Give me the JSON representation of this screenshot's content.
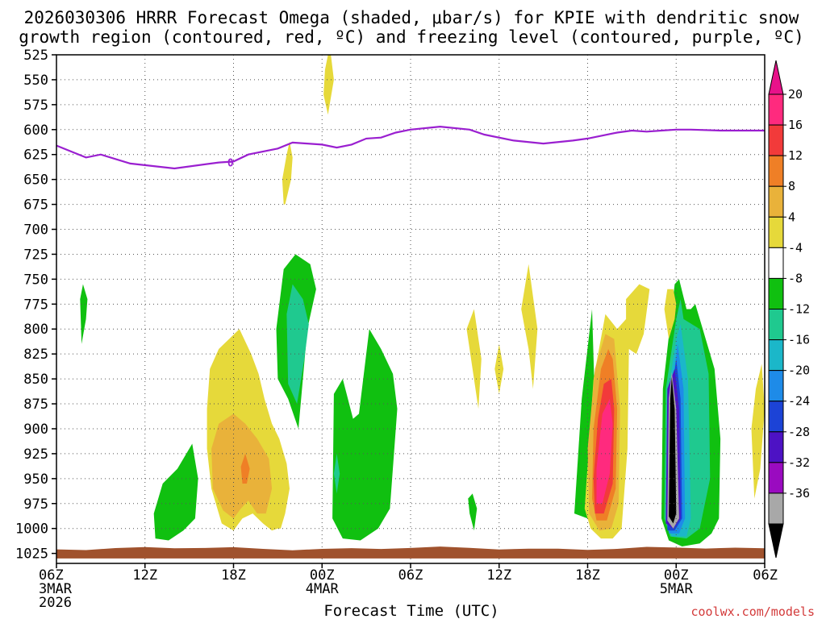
{
  "chart_data": {
    "type": "heatmap",
    "title_line1": "2026030306 HRRR Forecast Omega (shaded, μbar/s) for KPIE with dendritic snow",
    "title_line2": "growth region (contoured, red, ºC) and freezing level (contoured, purple, ºC)",
    "xlabel": "Forecast Time (UTC)",
    "x_unit": "forecast hour",
    "x_range": [
      0,
      48
    ],
    "x_ticks": [
      {
        "hour": 0,
        "label": "06Z",
        "date": "3MAR",
        "year": "2026"
      },
      {
        "hour": 6,
        "label": "12Z"
      },
      {
        "hour": 12,
        "label": "18Z"
      },
      {
        "hour": 18,
        "label": "00Z",
        "date": "4MAR"
      },
      {
        "hour": 24,
        "label": "06Z"
      },
      {
        "hour": 30,
        "label": "12Z"
      },
      {
        "hour": 36,
        "label": "18Z"
      },
      {
        "hour": 42,
        "label": "00Z",
        "date": "5MAR"
      },
      {
        "hour": 48,
        "label": "06Z"
      }
    ],
    "y_unit": "hPa",
    "y_range": [
      525,
      1035
    ],
    "y_ticks": [
      525,
      550,
      575,
      600,
      625,
      650,
      675,
      700,
      725,
      750,
      775,
      800,
      825,
      850,
      875,
      900,
      925,
      950,
      975,
      1000,
      1025
    ],
    "grid": true,
    "colorbar": {
      "levels": [
        "20",
        "16",
        "12",
        "8",
        "4",
        "-4",
        "-8",
        "-12",
        "-16",
        "-20",
        "-24",
        "-28",
        "-32",
        "-36"
      ],
      "colors": [
        "#ff2a7e",
        "#f23a3a",
        "#ef7f26",
        "#e9b23a",
        "#e6d93a",
        "#ffffff",
        "#10c010",
        "#1fc98f",
        "#1bb7c9",
        "#1e8be8",
        "#1c43d6",
        "#4d12c4",
        "#9a0bc0",
        "#a8a8a8",
        "#000000"
      ],
      "top_color": "#e8128a",
      "bottom_color": "#000000"
    },
    "freezing_level": {
      "label": "0",
      "color": "#9a1fd0",
      "hours": [
        0,
        2,
        3,
        5,
        8,
        11,
        12,
        13,
        15,
        16,
        17,
        18,
        19,
        20,
        21,
        22,
        23,
        24,
        26,
        28,
        29,
        31,
        33,
        35,
        36,
        38,
        39,
        40,
        41,
        42,
        43,
        45,
        47,
        48
      ],
      "pressure": [
        616,
        628,
        625,
        634,
        639,
        633,
        632,
        625,
        619,
        613,
        614,
        615,
        618,
        615,
        609,
        608,
        603,
        600,
        597,
        600,
        605,
        611,
        614,
        611,
        609,
        603,
        601,
        602,
        601,
        600,
        600,
        601,
        601,
        601
      ]
    },
    "terrain_color": "#a0522d",
    "regions": [
      {
        "omega": "4",
        "color": "#e6d93a",
        "hours": [
          15.2,
          15.5,
          15.8,
          15.6,
          15.1,
          14.6,
          14.1,
          13.7,
          13.2,
          12.4,
          11.0,
          10.4,
          10.2,
          10.2,
          10.5,
          11.2,
          12.0,
          12.6,
          13.3,
          14.0,
          14.6,
          15.0,
          15.2
        ],
        "pressure": [
          1000,
          985,
          960,
          935,
          910,
          895,
          870,
          845,
          825,
          800,
          820,
          840,
          880,
          920,
          960,
          995,
          1002,
          990,
          985,
          995,
          1002,
          1000,
          1000
        ]
      },
      {
        "omega": "8",
        "color": "#e9b23a",
        "hours": [
          14.2,
          14.6,
          14.4,
          13.6,
          12.8,
          12.0,
          11.0,
          10.5,
          10.6,
          11.3,
          12.0,
          12.5,
          13.0,
          13.6,
          14.2
        ],
        "pressure": [
          985,
          960,
          930,
          910,
          895,
          885,
          895,
          920,
          960,
          982,
          990,
          980,
          972,
          985,
          985
        ]
      },
      {
        "omega": "12",
        "color": "#ef7f26",
        "hours": [
          12.9,
          13.1,
          12.8,
          12.5,
          12.6,
          12.9
        ],
        "pressure": [
          955,
          940,
          925,
          938,
          955,
          955
        ]
      },
      {
        "omega": "4",
        "color": "#e6d93a",
        "hours": [
          15.5,
          15.9,
          16.0,
          15.8,
          15.6,
          15.3,
          15.4,
          15.5
        ],
        "pressure": [
          675,
          650,
          628,
          612,
          625,
          650,
          675,
          675
        ]
      },
      {
        "omega": "4",
        "color": "#e6d93a",
        "hours": [
          18.6,
          18.8,
          18.4,
          18.1,
          18.2,
          18.4,
          18.6
        ],
        "pressure": [
          525,
          550,
          585,
          565,
          540,
          525,
          525
        ]
      },
      {
        "omega": "-4",
        "color": "#10c010",
        "hours": [
          1.8,
          2.1,
          2.0,
          1.7,
          1.6,
          1.8
        ],
        "pressure": [
          755,
          770,
          790,
          815,
          770,
          755
        ]
      },
      {
        "omega": "-4",
        "color": "#10c010",
        "hours": [
          9.4,
          9.6,
          9.2,
          8.2,
          7.2,
          6.6,
          6.7,
          7.6,
          8.6,
          9.4
        ],
        "pressure": [
          990,
          950,
          915,
          940,
          955,
          985,
          1010,
          1012,
          1002,
          990
        ]
      },
      {
        "omega": "-4",
        "color": "#10c010",
        "hours": [
          17.0,
          17.6,
          17.2,
          16.2,
          15.4,
          14.9,
          15.0,
          15.7,
          16.4,
          17.0
        ],
        "pressure": [
          800,
          760,
          735,
          725,
          740,
          800,
          850,
          870,
          900,
          800
        ]
      },
      {
        "omega": "-8",
        "color": "#1fc98f",
        "hours": [
          16.8,
          17.1,
          16.7,
          16.0,
          15.6,
          15.7,
          16.3,
          16.8
        ],
        "pressure": [
          830,
          795,
          770,
          755,
          785,
          855,
          875,
          830
        ]
      },
      {
        "omega": "-4",
        "color": "#10c010",
        "hours": [
          22.6,
          23.1,
          22.8,
          22.0,
          21.2,
          20.5,
          20.1,
          19.4,
          18.8,
          18.7,
          19.4,
          20.6,
          21.8,
          22.6
        ],
        "pressure": [
          980,
          880,
          845,
          820,
          800,
          885,
          890,
          850,
          865,
          990,
          1010,
          1012,
          1000,
          980
        ]
      },
      {
        "omega": "-8",
        "color": "#1fc98f",
        "hours": [
          19.0,
          19.2,
          19.0,
          18.8,
          19.0
        ],
        "pressure": [
          925,
          945,
          965,
          945,
          925
        ]
      },
      {
        "omega": "-4",
        "color": "#10c010",
        "hours": [
          28.2,
          28.5,
          28.3,
          28.0,
          27.9,
          28.2
        ],
        "pressure": [
          965,
          980,
          1002,
          985,
          970,
          965
        ]
      },
      {
        "omega": "4",
        "color": "#e6d93a",
        "hours": [
          28.3,
          28.8,
          28.6,
          28.2,
          27.8,
          28.3
        ],
        "pressure": [
          780,
          830,
          880,
          840,
          800,
          780
        ]
      },
      {
        "omega": "4",
        "color": "#e6d93a",
        "hours": [
          30.0,
          30.3,
          30.0,
          29.7,
          30.0
        ],
        "pressure": [
          815,
          840,
          865,
          840,
          815
        ]
      },
      {
        "omega": "4",
        "color": "#e6d93a",
        "hours": [
          32.0,
          32.6,
          32.3,
          32.0,
          31.5,
          32.0
        ],
        "pressure": [
          735,
          800,
          860,
          820,
          780,
          735
        ]
      },
      {
        "omega": "-4",
        "color": "#10c010",
        "hours": [
          36.3,
          36.6,
          36.0,
          35.1,
          35.6,
          36.3
        ],
        "pressure": [
          780,
          930,
          990,
          985,
          870,
          780
        ]
      },
      {
        "omega": "4",
        "color": "#e6d93a",
        "hours": [
          38.0,
          38.6,
          38.6,
          39.5,
          40.2,
          39.8,
          39.3,
          38.8,
          38.7,
          38.3,
          37.7,
          36.9,
          36.2,
          35.8,
          36.4,
          37.2,
          38.0
        ],
        "pressure": [
          800,
          790,
          770,
          755,
          760,
          805,
          825,
          820,
          920,
          1000,
          1010,
          1010,
          1000,
          980,
          850,
          785,
          800
        ]
      },
      {
        "omega": "8",
        "color": "#e9b23a",
        "hours": [
          37.8,
          38.2,
          38.1,
          37.6,
          36.8,
          36.1,
          36.0,
          36.5,
          37.2,
          37.8
        ],
        "pressure": [
          810,
          880,
          975,
          1000,
          1002,
          985,
          920,
          840,
          805,
          810
        ]
      },
      {
        "omega": "12",
        "color": "#ef7f26",
        "hours": [
          37.7,
          38.0,
          37.9,
          37.3,
          36.6,
          36.3,
          36.4,
          36.9,
          37.4,
          37.7
        ],
        "pressure": [
          830,
          880,
          960,
          992,
          992,
          970,
          900,
          840,
          820,
          830
        ]
      },
      {
        "omega": "16",
        "color": "#f23a3a",
        "hours": [
          37.6,
          37.8,
          37.7,
          37.1,
          36.5,
          36.4,
          36.7,
          37.1,
          37.6
        ],
        "pressure": [
          850,
          880,
          955,
          985,
          985,
          950,
          890,
          855,
          850
        ]
      },
      {
        "omega": "20",
        "color": "#ff2a7e",
        "hours": [
          37.5,
          37.7,
          37.5,
          37.0,
          36.6,
          36.6,
          37.0,
          37.5
        ],
        "pressure": [
          870,
          895,
          945,
          975,
          975,
          940,
          885,
          870
        ]
      },
      {
        "omega": "-4",
        "color": "#10c010",
        "hours": [
          42.2,
          42.7,
          43.0,
          43.3,
          43.8,
          44.6,
          45.0,
          44.9,
          44.4,
          43.6,
          42.4,
          41.5,
          41.0,
          41.1,
          41.9,
          42.2
        ],
        "pressure": [
          750,
          780,
          780,
          775,
          800,
          840,
          910,
          990,
          1005,
          1015,
          1018,
          1012,
          990,
          860,
          755,
          750
        ]
      },
      {
        "omega": "-8",
        "color": "#1fc98f",
        "hours": [
          42.3,
          42.5,
          43.6,
          44.2,
          44.3,
          43.6,
          42.7,
          41.6,
          41.2,
          41.3,
          42.0,
          42.3
        ],
        "pressure": [
          770,
          790,
          800,
          845,
          950,
          1000,
          1010,
          1008,
          990,
          860,
          790,
          770
        ]
      },
      {
        "omega": "-12",
        "color": "#1bb7c9",
        "hours": [
          42.3,
          42.8,
          43.0,
          42.7,
          41.7,
          41.3,
          41.5,
          42.0,
          42.3
        ],
        "pressure": [
          795,
          850,
          990,
          1008,
          1008,
          990,
          860,
          810,
          795
        ]
      },
      {
        "omega": "-16",
        "color": "#1e8be8",
        "hours": [
          42.1,
          42.5,
          42.6,
          42.2,
          41.5,
          41.4,
          41.7,
          42.1
        ],
        "pressure": [
          815,
          860,
          990,
          1005,
          1005,
          970,
          860,
          815
        ]
      },
      {
        "omega": "-24",
        "color": "#1c43d6",
        "hours": [
          42.0,
          42.3,
          42.4,
          41.9,
          41.4,
          41.4,
          41.7,
          42.0
        ],
        "pressure": [
          830,
          870,
          990,
          1002,
          1002,
          960,
          865,
          830
        ]
      },
      {
        "omega": "-28",
        "color": "#4d12c4",
        "hours": [
          41.9,
          42.2,
          42.3,
          41.8,
          41.3,
          41.4,
          41.9
        ],
        "pressure": [
          840,
          880,
          990,
          1000,
          995,
          860,
          840
        ]
      },
      {
        "omega": "-32",
        "color": "#a8a8a8",
        "hours": [
          41.7,
          42.0,
          42.2,
          41.8,
          41.4,
          41.5,
          41.7
        ],
        "pressure": [
          843,
          880,
          990,
          1000,
          992,
          870,
          843
        ]
      },
      {
        "omega": "-36",
        "color": "#000000",
        "hours": [
          41.7,
          41.9,
          42.0,
          41.8,
          41.5,
          41.6,
          41.7
        ],
        "pressure": [
          848,
          880,
          985,
          995,
          988,
          870,
          848
        ]
      },
      {
        "omega": "4",
        "color": "#e6d93a",
        "hours": [
          42.0,
          41.8,
          41.4,
          41.2,
          41.5,
          41.9,
          42.0
        ],
        "pressure": [
          775,
          760,
          760,
          780,
          810,
          790,
          775
        ]
      },
      {
        "omega": "4",
        "color": "#e6d93a",
        "hours": [
          47.8,
          48.0,
          47.7,
          47.3,
          47.1,
          47.4,
          47.8
        ],
        "pressure": [
          835,
          880,
          940,
          970,
          900,
          860,
          835
        ]
      }
    ],
    "credit": "coolwx.com/models"
  }
}
